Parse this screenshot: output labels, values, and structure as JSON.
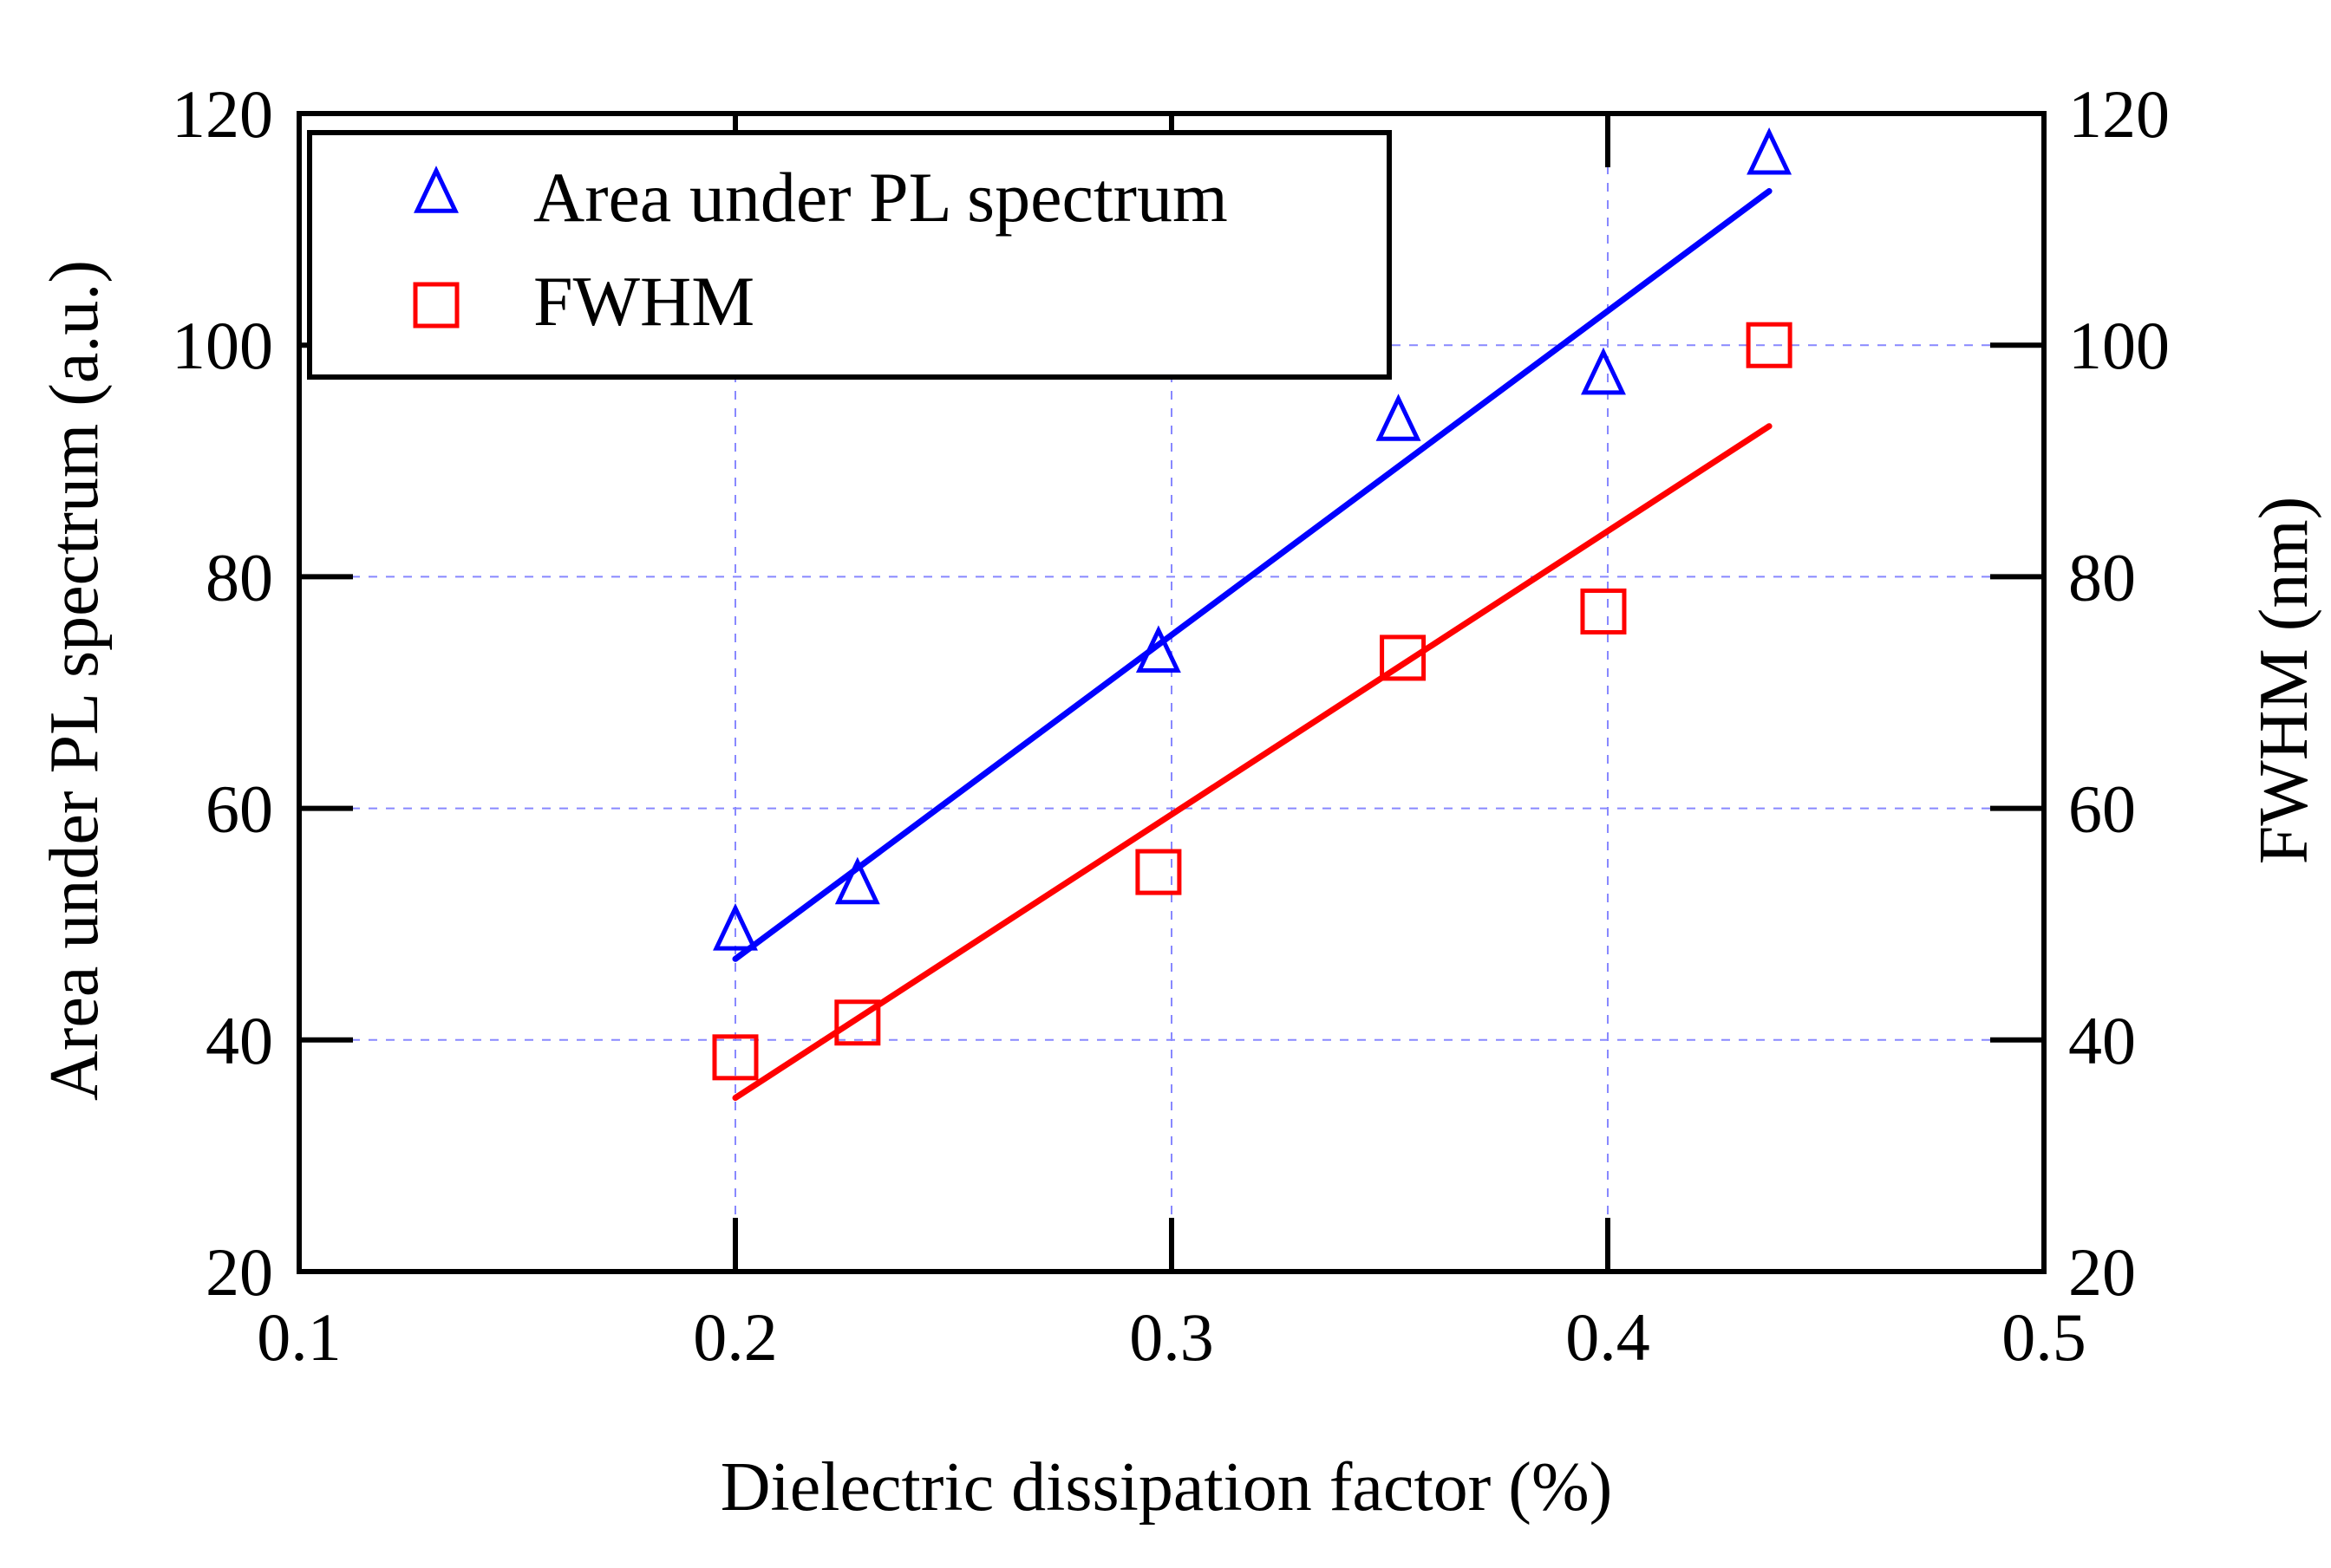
{
  "chart_data": {
    "type": "scatter",
    "title": "",
    "xlabel": "Dielectric dissipation factor (%)",
    "ylabel_left": "Area under PL spectrum (a.u.)",
    "ylabel_right": "FWHM (nm)",
    "xlim": [
      0.1,
      0.5
    ],
    "ylim": [
      20,
      120
    ],
    "x_ticks": [
      "0.1",
      "0.2",
      "0.3",
      "0.4",
      "0.5"
    ],
    "x_tick_values": [
      0.1,
      0.2,
      0.3,
      0.4,
      0.5
    ],
    "y_ticks_left": [
      "20",
      "40",
      "60",
      "80",
      "100",
      "120"
    ],
    "y_ticks_right": [
      "20",
      "40",
      "60",
      "80",
      "100",
      "120"
    ],
    "y_tick_values": [
      20,
      40,
      60,
      80,
      100,
      120
    ],
    "grid": true,
    "legend_position": "top-left",
    "series": [
      {
        "name": "Area under PL spectrum",
        "marker": "triangle",
        "color": "#0000ff",
        "axis": "left",
        "x": [
          0.2,
          0.228,
          0.297,
          0.352,
          0.399,
          0.437
        ],
        "y": [
          49.5,
          53.5,
          73.5,
          93.5,
          97.5,
          116.5
        ],
        "fit": {
          "x": [
            0.2,
            0.437
          ],
          "y": [
            47.0,
            113.3
          ]
        }
      },
      {
        "name": "FWHM",
        "marker": "square",
        "color": "#ff0000",
        "axis": "right",
        "x": [
          0.2,
          0.228,
          0.297,
          0.353,
          0.399,
          0.437
        ],
        "y": [
          38.5,
          41.5,
          54.5,
          73.0,
          77.0,
          100.0
        ],
        "fit": {
          "x": [
            0.2,
            0.437
          ],
          "y": [
            35.0,
            93.0
          ]
        }
      }
    ]
  }
}
